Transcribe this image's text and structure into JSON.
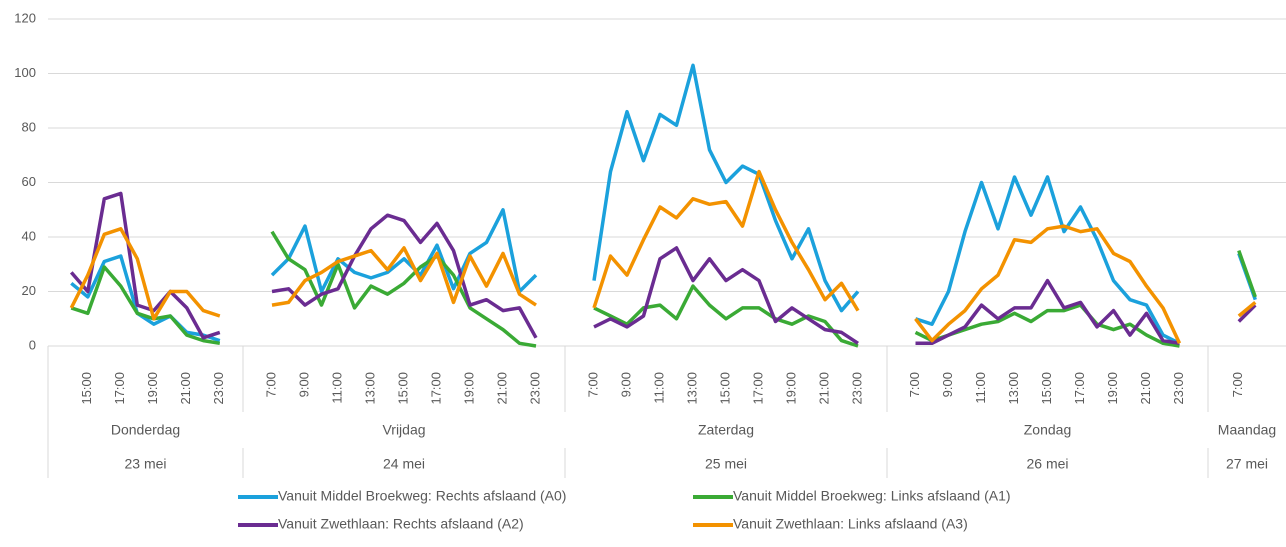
{
  "chart_data": {
    "type": "line",
    "ylim": [
      0,
      120
    ],
    "yticks": [
      0,
      20,
      40,
      60,
      80,
      100,
      120
    ],
    "grid": true,
    "groups": [
      {
        "day": "Donderdag",
        "date": "23 mei",
        "categories": [
          null,
          "15:00",
          null,
          "17:00",
          null,
          "19:00",
          null,
          "21:00",
          null,
          "23:00"
        ]
      },
      {
        "day": "Vrijdag",
        "date": "24 mei",
        "categories": [
          "7:00",
          null,
          "9:00",
          null,
          "11:00",
          null,
          "13:00",
          null,
          "15:00",
          null,
          "17:00",
          null,
          "19:00",
          null,
          "21:00",
          null,
          "23:00"
        ]
      },
      {
        "day": "Zaterdag",
        "date": "25 mei",
        "categories": [
          "7:00",
          null,
          "9:00",
          null,
          "11:00",
          null,
          "13:00",
          null,
          "15:00",
          null,
          "17:00",
          null,
          "19:00",
          null,
          "21:00",
          null,
          "23:00"
        ]
      },
      {
        "day": "Zondag",
        "date": "26 mei",
        "categories": [
          "7:00",
          null,
          "9:00",
          null,
          "11:00",
          null,
          "13:00",
          null,
          "15:00",
          null,
          "17:00",
          null,
          "19:00",
          null,
          "21:00",
          null,
          "23:00"
        ]
      },
      {
        "day": "Maandag",
        "date": "27 mei",
        "categories": [
          "7:00",
          null
        ]
      }
    ],
    "series": [
      {
        "name": "Vanuit Middel Broekweg: Rechts afslaand (A0)",
        "color": "#1ba1dc",
        "values": [
          23,
          18,
          31,
          33,
          12,
          8,
          11,
          5,
          4,
          2,
          26,
          32,
          44,
          20,
          32,
          27,
          25,
          27,
          32,
          26,
          37,
          21,
          34,
          38,
          50,
          20,
          26,
          24,
          64,
          86,
          68,
          85,
          81,
          103,
          72,
          60,
          66,
          63,
          46,
          32,
          43,
          24,
          13,
          20,
          10,
          8,
          20,
          42,
          60,
          43,
          62,
          48,
          62,
          42,
          51,
          39,
          24,
          17,
          15,
          4,
          1,
          34,
          17
        ]
      },
      {
        "name": "Vanuit Middel Broekweg: Links afslaand (A1)",
        "color": "#3aaa35",
        "values": [
          14,
          12,
          29,
          22,
          12,
          10,
          11,
          4,
          2,
          1,
          42,
          32,
          28,
          15,
          30,
          14,
          22,
          19,
          23,
          29,
          33,
          26,
          14,
          10,
          6,
          1,
          0,
          14,
          11,
          8,
          14,
          15,
          10,
          22,
          15,
          10,
          14,
          14,
          10,
          8,
          11,
          9,
          2,
          0,
          5,
          2,
          4,
          6,
          8,
          9,
          12,
          9,
          13,
          13,
          15,
          8,
          6,
          8,
          4,
          1,
          0,
          35,
          18
        ]
      },
      {
        "name": "Vanuit Zwethlaan: Rechts afslaand (A2)",
        "color": "#6a2c91",
        "values": [
          27,
          20,
          54,
          56,
          15,
          13,
          20,
          14,
          3,
          5,
          20,
          21,
          15,
          19,
          21,
          33,
          43,
          48,
          46,
          38,
          45,
          35,
          15,
          17,
          13,
          14,
          3,
          7,
          10,
          7,
          11,
          32,
          36,
          24,
          32,
          24,
          28,
          24,
          9,
          14,
          10,
          6,
          5,
          1,
          1,
          1,
          4,
          7,
          15,
          10,
          14,
          14,
          24,
          14,
          16,
          7,
          13,
          4,
          12,
          2,
          1,
          9,
          15
        ]
      },
      {
        "name": "Vanuit Zwethlaan: Links afslaand (A3)",
        "color": "#f39200",
        "values": [
          14,
          26,
          41,
          43,
          32,
          10,
          20,
          20,
          13,
          11,
          15,
          16,
          24,
          27,
          31,
          33,
          35,
          28,
          36,
          24,
          34,
          16,
          33,
          22,
          34,
          19,
          15,
          14,
          33,
          26,
          39,
          51,
          47,
          54,
          52,
          53,
          44,
          64,
          50,
          38,
          28,
          17,
          23,
          13,
          10,
          2,
          8,
          13,
          21,
          26,
          39,
          38,
          43,
          44,
          42,
          43,
          34,
          31,
          22,
          14,
          1,
          11,
          16
        ]
      }
    ]
  }
}
